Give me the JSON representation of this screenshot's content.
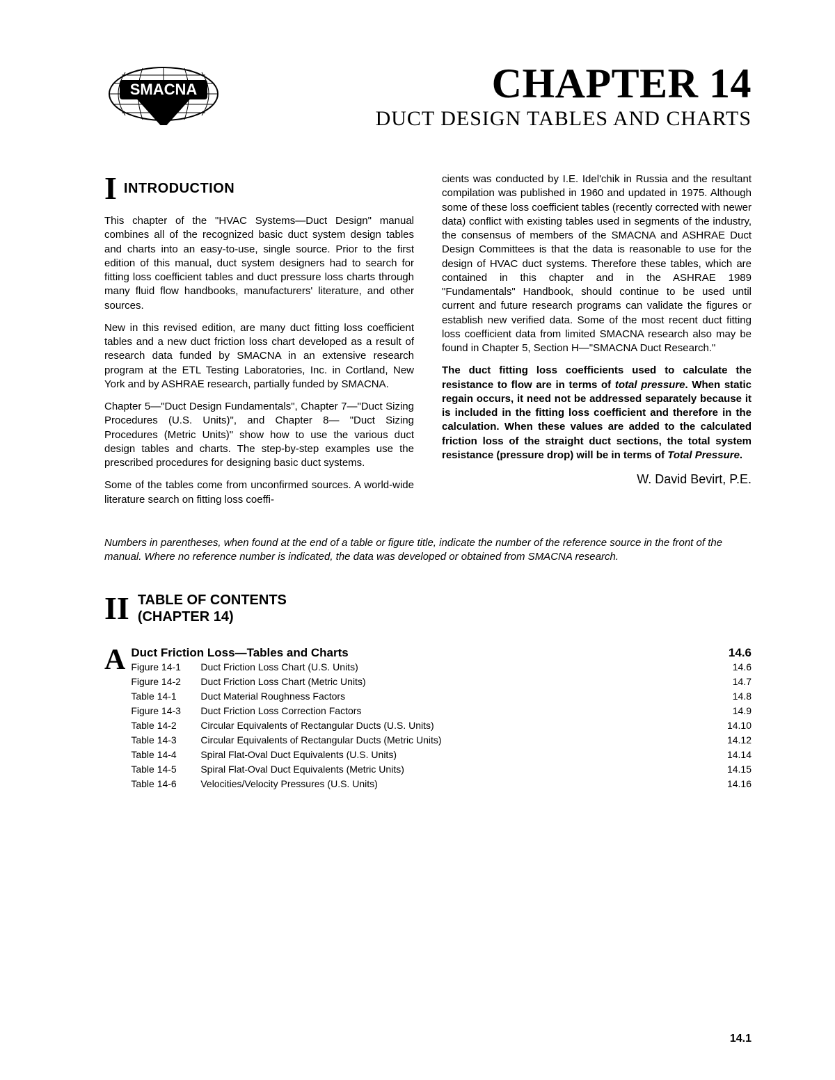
{
  "header": {
    "logo_text": "SMACNA",
    "chapter_title": "CHAPTER 14",
    "chapter_subtitle": "DUCT DESIGN TABLES AND CHARTS"
  },
  "intro": {
    "roman": "I",
    "title": "INTRODUCTION",
    "left": {
      "p1": "This chapter of the \"HVAC Systems—Duct Design\" manual combines all of the recognized basic duct system design tables and charts into an easy-to-use, single source. Prior to the first edition of this manual, duct system designers had to search for fitting loss coefficient tables and duct pressure loss charts through many fluid flow handbooks, manufacturers' literature, and other sources.",
      "p2": "New in this revised edition, are many duct fitting loss coefficient tables and a new duct friction loss chart developed as a result of research data funded by SMACNA in an extensive research program at the ETL Testing Laboratories, Inc. in Cortland, New York and by ASHRAE research, partially funded by SMACNA.",
      "p3": "Chapter 5—\"Duct Design Fundamentals\", Chapter 7—\"Duct Sizing Procedures (U.S. Units)\", and Chapter 8— \"Duct Sizing Procedures (Metric Units)\" show how to use the various duct design tables and charts. The step-by-step examples use the prescribed procedures for designing basic duct systems.",
      "p4": "Some of the tables come from unconfirmed sources. A world-wide literature search on fitting loss coeffi-"
    },
    "right": {
      "p1": "cients was conducted by I.E. Idel'chik in Russia and the resultant compilation was published in 1960 and updated in 1975. Although some of these loss coefficient tables (recently corrected with newer data) conflict with existing tables used in segments of the industry, the consensus of members of the SMACNA and ASHRAE Duct Design Committees is that the data is reasonable to use for the design of HVAC duct systems. Therefore these tables, which are contained in this chapter and in the ASHRAE 1989 \"Fundamentals\" Handbook, should continue to be used until current and future research programs can validate the figures or establish new verified data. Some of the most recent duct fitting loss coefficient data from limited SMACNA research also may be found in Chapter 5, Section H—\"SMACNA Duct Research.\"",
      "p2a": "The duct fitting loss coefficients used to calculate the resistance to flow are in terms of ",
      "p2b": "total pressure",
      "p2c": ". When static regain occurs, it need not be addressed separately because it is included in the fitting loss coefficient and therefore in the calculation. When these values are added to the calculated friction loss of the straight duct sections, the total system resistance (pressure drop) will be in terms of ",
      "p2d": "Total Pressure",
      "p2e": ".",
      "author": "W. David Bevirt, P.E."
    }
  },
  "note": "Numbers in parentheses, when found at the end of a table or figure title, indicate the number of the reference source in the front of the manual. Where no reference number is indicated, the data was developed or obtained from SMACNA research.",
  "toc": {
    "roman": "II",
    "title_l1": "TABLE OF CONTENTS",
    "title_l2": "(CHAPTER 14)",
    "section_letter": "A",
    "section_title": "Duct Friction Loss—Tables and Charts",
    "section_page": "14.6",
    "items": [
      {
        "label": "Figure 14-1",
        "desc": "Duct Friction Loss Chart (U.S. Units)",
        "page": "14.6"
      },
      {
        "label": "Figure 14-2",
        "desc": "Duct Friction Loss Chart (Metric Units)",
        "page": "14.7"
      },
      {
        "label": "Table 14-1",
        "desc": "Duct Material Roughness Factors",
        "page": "14.8"
      },
      {
        "label": "Figure 14-3",
        "desc": "Duct Friction Loss Correction Factors",
        "page": "14.9"
      },
      {
        "label": "Table 14-2",
        "desc": "Circular Equivalents of Rectangular Ducts (U.S. Units)",
        "page": "14.10"
      },
      {
        "label": "Table 14-3",
        "desc": "Circular Equivalents of Rectangular Ducts (Metric Units)",
        "page": "14.12"
      },
      {
        "label": "Table 14-4",
        "desc": "Spiral Flat-Oval Duct Equivalents (U.S. Units)",
        "page": "14.14"
      },
      {
        "label": "Table 14-5",
        "desc": "Spiral Flat-Oval Duct Equivalents (Metric Units)",
        "page": "14.15"
      },
      {
        "label": "Table 14-6",
        "desc": "Velocities/Velocity Pressures (U.S. Units)",
        "page": "14.16"
      }
    ]
  },
  "page_number": "14.1",
  "style": {
    "page_bg": "#ffffff",
    "text_color": "#000000",
    "body_font": "Arial, Helvetica, sans-serif",
    "serif_font": "Times New Roman, Times, serif",
    "chapter_title_fontsize": 60,
    "chapter_subtitle_fontsize": 30,
    "body_fontsize": 15,
    "section_title_fontsize": 20,
    "roman_fontsize": 46,
    "letter_fontsize": 42
  }
}
